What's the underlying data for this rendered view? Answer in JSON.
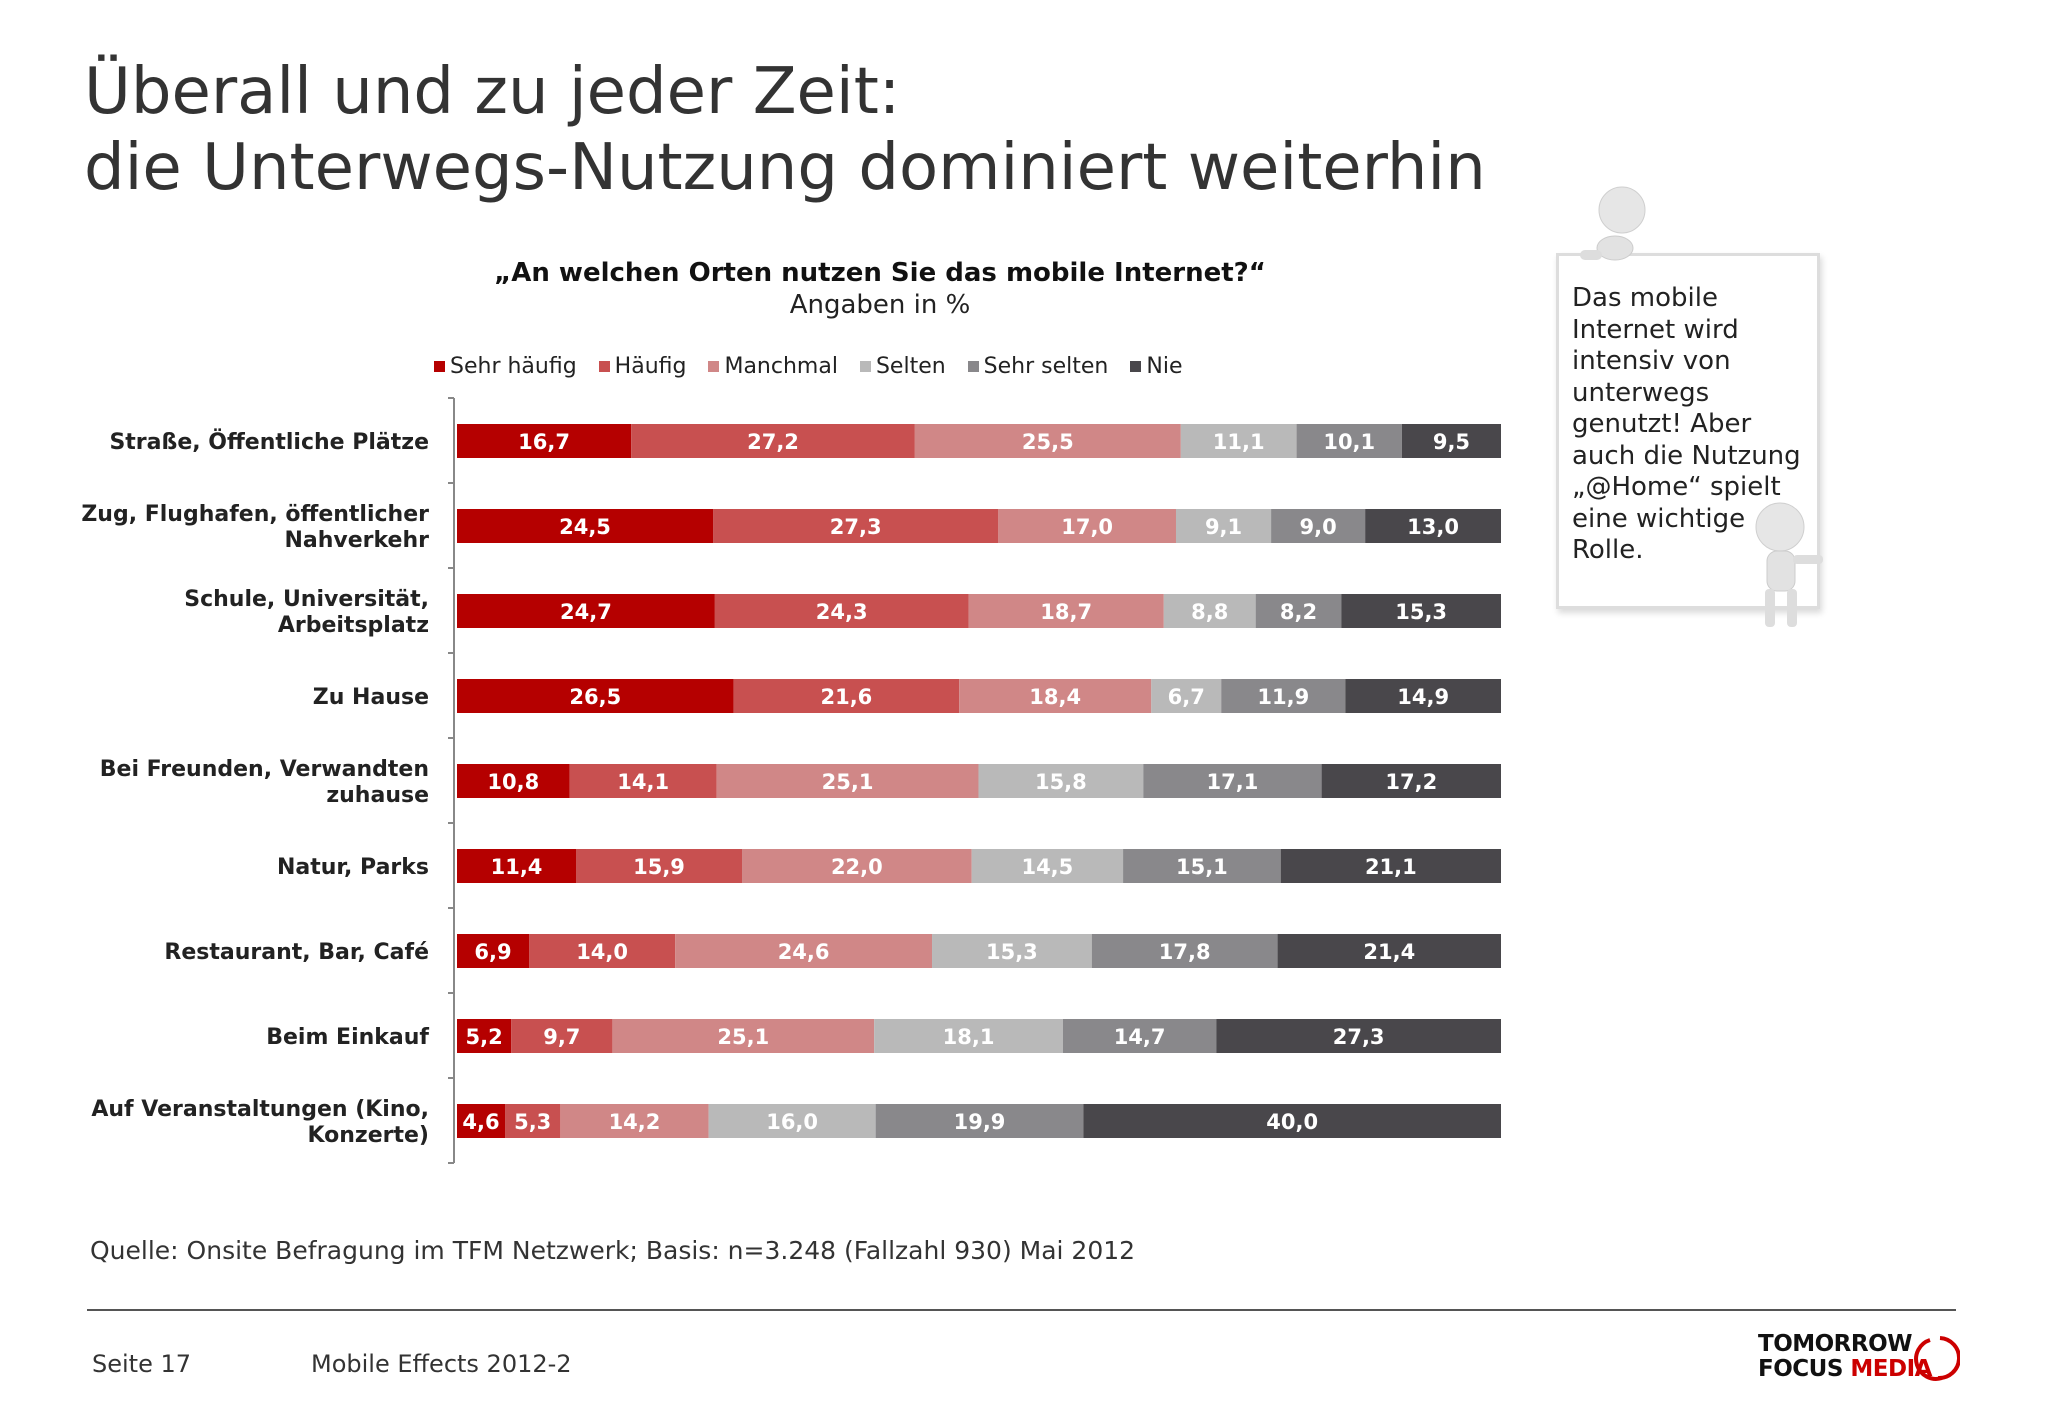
{
  "title": {
    "line1": "Überall und zu jeder Zeit:",
    "line2": "die Unterwegs-Nutzung dominiert weiterhin"
  },
  "callout": {
    "text": "Das mobile Internet wird intensiv von unterwegs genutzt! Aber auch die Nutzung „@Home“ spielt eine wichtige Rolle."
  },
  "source": "Quelle: Onsite Befragung im TFM Netzwerk; Basis: n=3.248 (Fallzahl 930) Mai 2012",
  "footer": {
    "page": "Seite 17",
    "doc": "Mobile Effects 2012-2"
  },
  "logo": {
    "line1": "TOMORROW",
    "line2a": "FOCUS",
    "line2b": "MEDIA"
  },
  "chart_data": {
    "type": "bar",
    "orientation": "horizontal",
    "stacked": true,
    "title": "„An welchen Orten nutzen Sie das mobile Internet?“",
    "subtitle": "Angaben in %",
    "legend_position": "top",
    "grid": false,
    "xlim": [
      0,
      100
    ],
    "categories": [
      "Straße, Öffentliche Plätze",
      "Zug, Flughafen, öffentlicher Nahverkehr",
      "Schule, Universität, Arbeitsplatz",
      "Zu Hause",
      "Bei Freunden, Verwandten zuhause",
      "Natur, Parks",
      "Restaurant, Bar, Café",
      "Beim Einkauf",
      "Auf Veranstaltungen (Kino, Konzerte)"
    ],
    "category_lines": [
      [
        "Straße, Öffentliche Plätze"
      ],
      [
        "Zug, Flughafen, öffentlicher",
        "Nahverkehr"
      ],
      [
        "Schule, Universität,",
        "Arbeitsplatz"
      ],
      [
        "Zu Hause"
      ],
      [
        "Bei Freunden, Verwandten",
        "zuhause"
      ],
      [
        "Natur, Parks"
      ],
      [
        "Restaurant, Bar, Café"
      ],
      [
        "Beim Einkauf"
      ],
      [
        "Auf Veranstaltungen (Kino,",
        "Konzerte)"
      ]
    ],
    "series": [
      {
        "name": "Sehr häufig",
        "color": "#b50000",
        "values": [
          16.7,
          24.5,
          24.7,
          26.5,
          10.8,
          11.4,
          6.9,
          5.2,
          4.6
        ],
        "labels": [
          "16,7",
          "24,5",
          "24,7",
          "26,5",
          "10,8",
          "11,4",
          "6,9",
          "5,2",
          "4,6"
        ]
      },
      {
        "name": "Häufig",
        "color": "#c85050",
        "values": [
          27.2,
          27.3,
          24.3,
          21.6,
          14.1,
          15.9,
          14.0,
          9.7,
          5.3
        ],
        "labels": [
          "27,2",
          "27,3",
          "24,3",
          "21,6",
          "14,1",
          "15,9",
          "14,0",
          "9,7",
          "5,3"
        ]
      },
      {
        "name": "Manchmal",
        "color": "#d08787",
        "values": [
          25.5,
          17.0,
          18.7,
          18.4,
          25.1,
          22.0,
          24.6,
          25.1,
          14.2
        ],
        "labels": [
          "25,5",
          "17,0",
          "18,7",
          "18,4",
          "25,1",
          "22,0",
          "24,6",
          "25,1",
          "14,2"
        ]
      },
      {
        "name": "Selten",
        "color": "#b9b9b9",
        "values": [
          11.1,
          9.1,
          8.8,
          6.7,
          15.8,
          14.5,
          15.3,
          18.1,
          16.0
        ],
        "labels": [
          "11,1",
          "9,1",
          "8,8",
          "6,7",
          "15,8",
          "14,5",
          "15,3",
          "18,1",
          "16,0"
        ]
      },
      {
        "name": "Sehr selten",
        "color": "#89888b",
        "values": [
          10.1,
          9.0,
          8.2,
          11.9,
          17.1,
          15.1,
          17.8,
          14.7,
          19.9
        ],
        "labels": [
          "10,1",
          "9,0",
          "8,2",
          "11,9",
          "17,1",
          "15,1",
          "17,8",
          "14,7",
          "19,9"
        ]
      },
      {
        "name": "Nie",
        "color": "#49474b",
        "values": [
          9.5,
          13.0,
          15.3,
          14.9,
          17.2,
          21.1,
          21.4,
          27.3,
          40.0
        ],
        "labels": [
          "9,5",
          "13,0",
          "15,3",
          "14,9",
          "17,2",
          "21,1",
          "21,4",
          "27,3",
          "40,0"
        ]
      }
    ]
  }
}
